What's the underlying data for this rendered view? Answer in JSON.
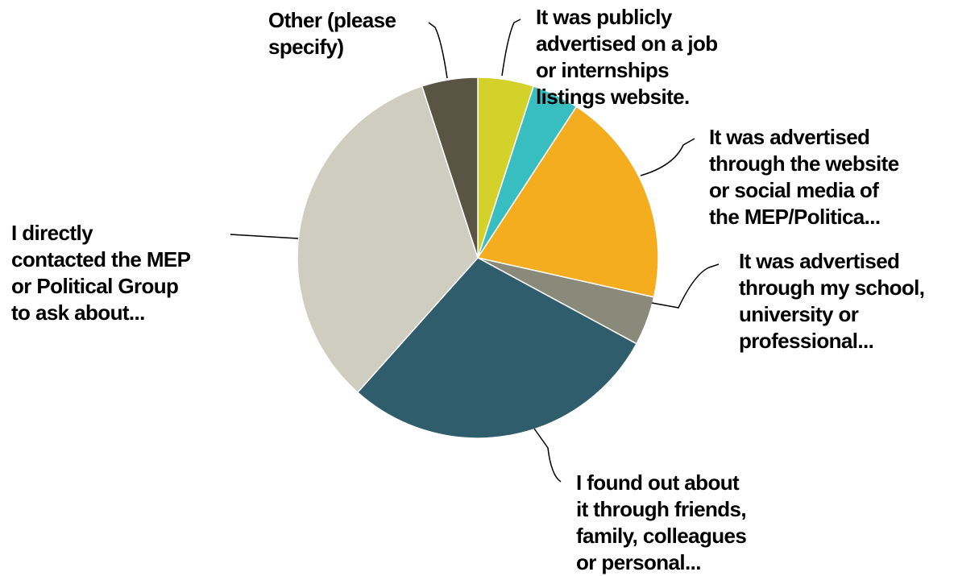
{
  "chart_data": {
    "type": "pie",
    "title": "",
    "start_angle_deg": 0,
    "direction": "clockwise",
    "slices": [
      {
        "label": "It was publicly advertised on a job or internships listings website.",
        "label_lines": [
          "It was publicly",
          "advertised on a job",
          "or internships",
          "listings website."
        ],
        "value": 5.0,
        "color": "#d2d22b"
      },
      {
        "label": "It was advertised through the website or social media of the MEP/Politica...",
        "label_lines": [
          "It was advertised",
          "through the website",
          "or social media of",
          "the MEP/Politica..."
        ],
        "value": 4.2,
        "color": "#38bec0"
      },
      {
        "label": "",
        "label_lines": [],
        "value": 19.3,
        "color": "#f5ad20"
      },
      {
        "label": "It was advertised through my school, university or professional...",
        "label_lines": [
          "It was advertised",
          "through my school,",
          "university or",
          "professional..."
        ],
        "value": 4.4,
        "color": "#898a7a"
      },
      {
        "label": "I found out about it through friends, family, colleagues or personal...",
        "label_lines": [
          "I found out about",
          "it through friends,",
          "family, colleagues",
          "or personal..."
        ],
        "value": 28.7,
        "color": "#2f5d6b"
      },
      {
        "label": "I directly contacted the MEP or Political Group to ask about...",
        "label_lines": [
          "I directly",
          "contacted the MEP",
          "or Political Group",
          "to ask about..."
        ],
        "value": 33.4,
        "color": "#cfcdc0"
      },
      {
        "label": "Other (please specify)",
        "label_lines": [
          "Other (please",
          "specify)"
        ],
        "value": 5.0,
        "color": "#5a5445"
      }
    ]
  }
}
